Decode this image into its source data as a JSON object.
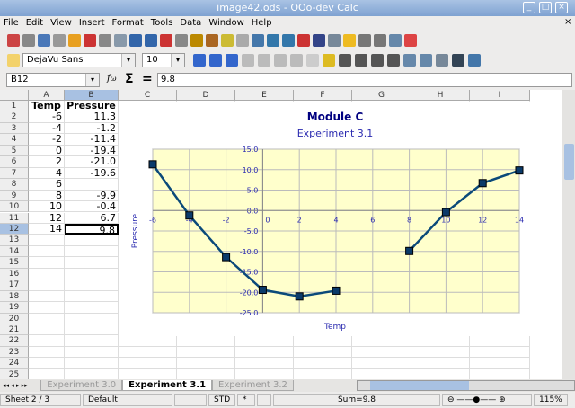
{
  "window": {
    "title": "image42.ods - OOo-dev Calc"
  },
  "menu": [
    "File",
    "Edit",
    "View",
    "Insert",
    "Format",
    "Tools",
    "Data",
    "Window",
    "Help"
  ],
  "format_bar": {
    "font_name": "DejaVu Sans",
    "font_size": "10"
  },
  "formula_bar": {
    "cell_ref": "B12",
    "value": "9.8"
  },
  "columns": [
    "A",
    "B",
    "C",
    "D",
    "E",
    "F",
    "G",
    "H",
    "I"
  ],
  "rows": [
    [
      "Temp",
      "Pressure"
    ],
    [
      "-6",
      "11.3"
    ],
    [
      "-4",
      "-1.2"
    ],
    [
      "-2",
      "-11.4"
    ],
    [
      "0",
      "-19.4"
    ],
    [
      "2",
      "-21.0"
    ],
    [
      "4",
      "-19.6"
    ],
    [
      "6",
      ""
    ],
    [
      "8",
      "-9.9"
    ],
    [
      "10",
      "-0.4"
    ],
    [
      "12",
      "6.7"
    ],
    [
      "14",
      "9.8"
    ]
  ],
  "row_count": 25,
  "selected_cell": "B12",
  "sheet_tabs": [
    "Experiment 3.0",
    "Experiment 3.1",
    "Experiment 3.2"
  ],
  "active_tab": "Experiment 3.1",
  "status": {
    "sheet": "Sheet 2 / 3",
    "style": "Default",
    "mode": "STD",
    "modified": "*",
    "sum": "Sum=9.8",
    "zoom": "115%"
  },
  "chart_data": {
    "type": "line",
    "title": "Module C",
    "subtitle": "Experiment 3.1",
    "xlabel": "Temp",
    "ylabel": "Pressure",
    "x": [
      -6,
      -4,
      -2,
      0,
      2,
      4,
      6,
      8,
      10,
      12,
      14
    ],
    "values": [
      11.3,
      -1.2,
      -11.4,
      -19.4,
      -21.0,
      -19.6,
      null,
      -9.9,
      -0.4,
      6.7,
      9.8
    ],
    "xlim": [
      -6,
      14
    ],
    "ylim": [
      -25,
      15
    ],
    "xticks": [
      "-6",
      "-4",
      "-2",
      "0",
      "2",
      "4",
      "6",
      "8",
      "10",
      "12",
      "14"
    ],
    "yticks": [
      "15.0",
      "10.0",
      "5.0",
      "0.0",
      "-5.0",
      "-10.0",
      "-15.0",
      "-20.0",
      "-25.0"
    ],
    "grid": true,
    "colors": {
      "line": "#0b4a7a",
      "plot_bg": "#ffffcc",
      "text": "#2b2bb0",
      "title": "#000080"
    }
  }
}
